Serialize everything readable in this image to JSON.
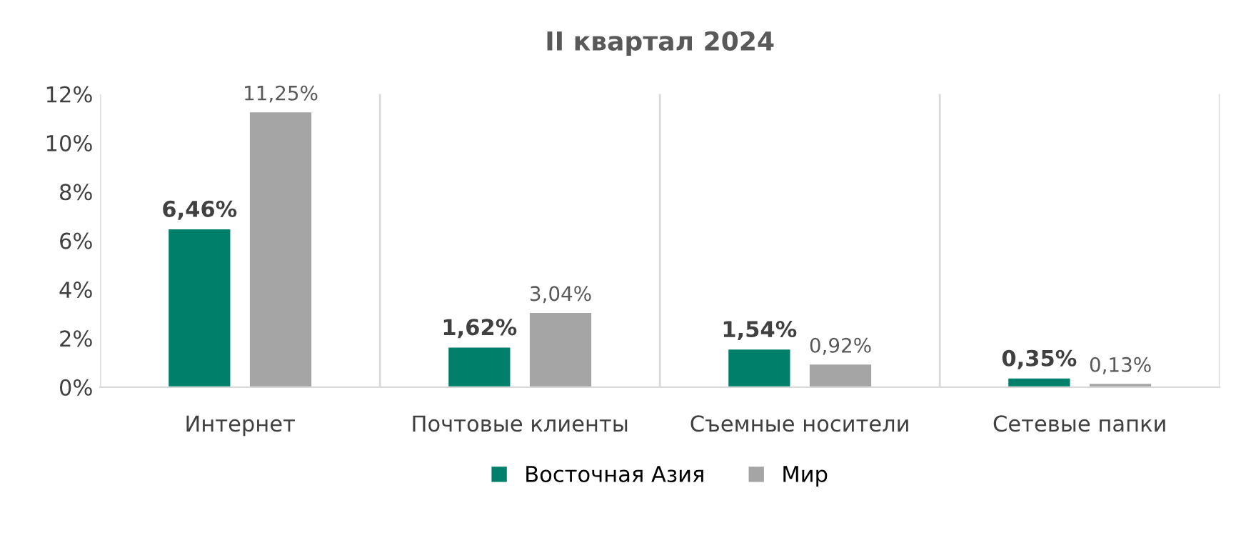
{
  "chart_data": {
    "type": "bar",
    "title": "II квартал 2024",
    "categories": [
      "Интернет",
      "Почтовые клиенты",
      "Съемные носители",
      "Сетевые папки"
    ],
    "series": [
      {
        "name": "Восточная Азия",
        "color": "#00806a",
        "values": [
          6.46,
          1.62,
          1.54,
          0.35
        ],
        "value_labels": [
          "6,46%",
          "1,62%",
          "1,54%",
          "0,35%"
        ]
      },
      {
        "name": "Мир",
        "color": "#a5a5a5",
        "values": [
          11.25,
          3.04,
          0.92,
          0.13
        ],
        "value_labels": [
          "11,25%",
          "3,04%",
          "0,92%",
          "0,13%"
        ]
      }
    ],
    "ylim": [
      0,
      12
    ],
    "yticks": [
      {
        "value": 0,
        "label": "0%"
      },
      {
        "value": 2,
        "label": "2%"
      },
      {
        "value": 4,
        "label": "4%"
      },
      {
        "value": 6,
        "label": "6%"
      },
      {
        "value": 8,
        "label": "8%"
      },
      {
        "value": 10,
        "label": "10%"
      },
      {
        "value": 12,
        "label": "12%"
      }
    ],
    "grid": "x",
    "legend": "bottom"
  }
}
